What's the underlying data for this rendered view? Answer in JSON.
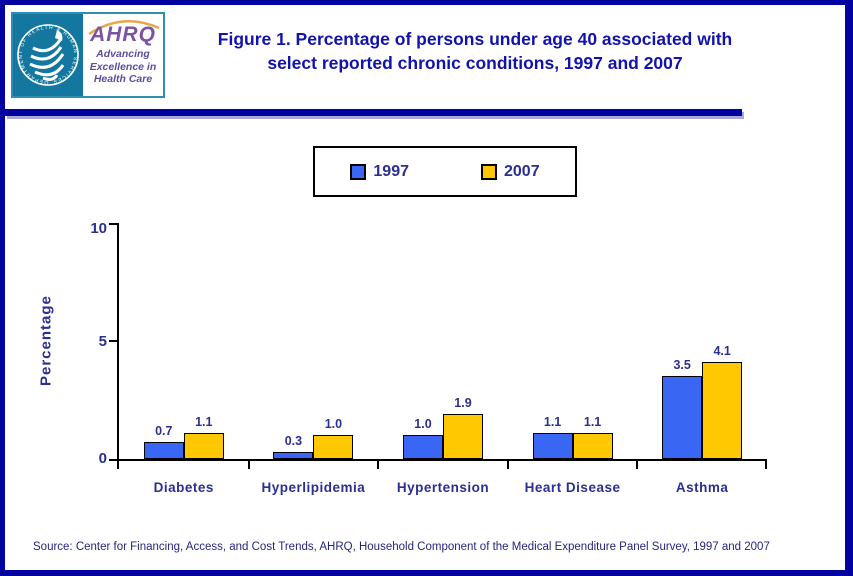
{
  "header": {
    "logo": {
      "org": "AHRQ",
      "seal_text": "DEPARTMENT OF HEALTH & HUMAN SERVICES · USA",
      "tagline_lines": [
        "Advancing",
        "Excellence in",
        "Health Care"
      ]
    },
    "title_lines": [
      "Figure 1. Percentage of persons under age 40 associated with",
      "select reported chronic conditions, 1997 and 2007"
    ]
  },
  "chart_data": {
    "type": "bar",
    "categories": [
      "Diabetes",
      "Hyperlipidemia",
      "Hypertension",
      "Heart Disease",
      "Asthma"
    ],
    "series": [
      {
        "name": "1997",
        "color": "#3966F2",
        "values": [
          0.7,
          0.3,
          1.0,
          1.1,
          3.5
        ]
      },
      {
        "name": "2007",
        "color": "#FFC800",
        "values": [
          1.1,
          1.0,
          1.9,
          1.1,
          4.1
        ]
      }
    ],
    "title": "Figure 1. Percentage of persons under age 40 associated with select reported chronic conditions, 1997 and 2007",
    "xlabel": "",
    "ylabel": "Percentage",
    "ylim": [
      0,
      10
    ],
    "yticks": [
      0,
      5,
      10
    ],
    "legend_position": "top",
    "grid": false
  },
  "colors": {
    "accent_navy": "#0202A0",
    "text_navy": "#2B2F90",
    "title_blue": "#1212AC",
    "bar_1997": "#3966F2",
    "bar_2007": "#FFC800"
  },
  "footer": {
    "source": "Source: Center for Financing, Access, and Cost Trends, AHRQ, Household Component of the Medical Expenditure Panel Survey, 1997 and 2007"
  }
}
